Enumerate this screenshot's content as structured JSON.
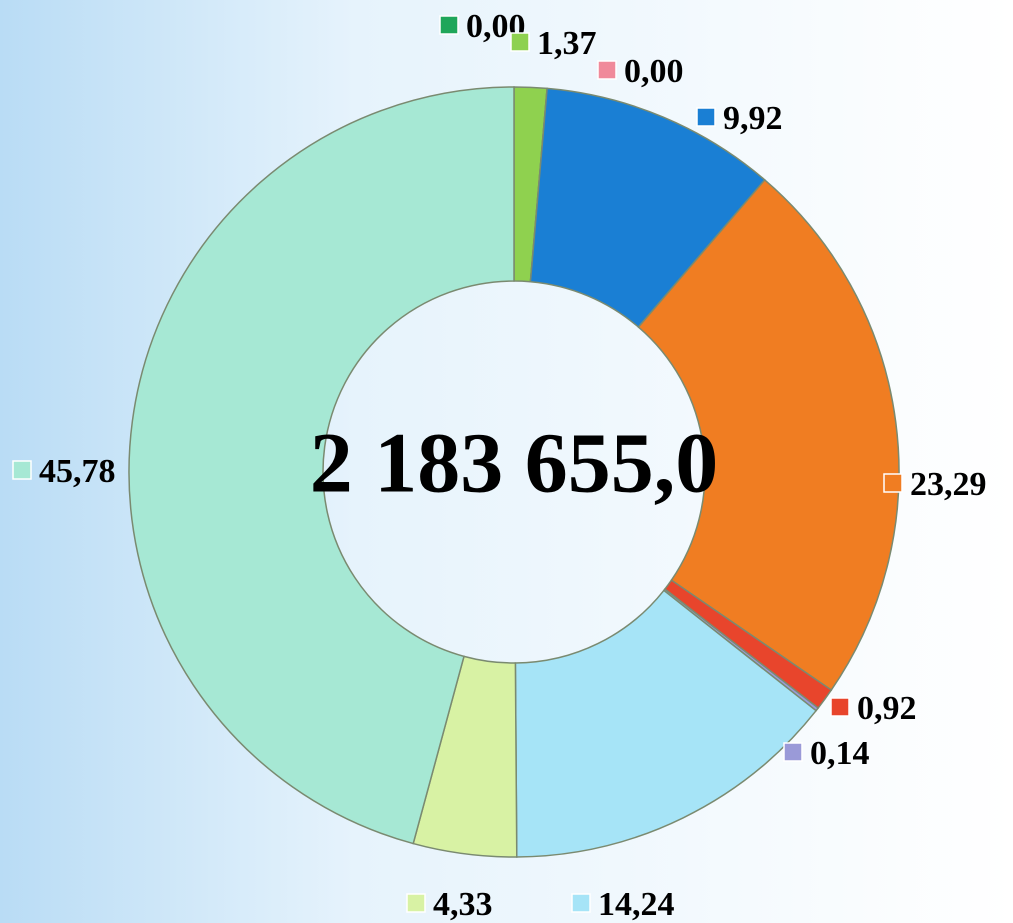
{
  "chart_data": {
    "type": "donut",
    "center_text": "2 183 655,0",
    "values": [
      0,
      1.37,
      0,
      9.92,
      23.29,
      0.92,
      0.14,
      14.24,
      4.33,
      45.78
    ],
    "value_labels": [
      "0,00",
      "1,37",
      "0,00",
      "9,92",
      "23,29",
      "0,92",
      "0,14",
      "14,24",
      "4,33",
      "45,78"
    ],
    "colors": [
      "#1fa65a",
      "#8fd14f",
      "#f08a9a",
      "#1a7fd4",
      "#f07d22",
      "#e8452c",
      "#9a9ad8",
      "#a6e4f7",
      "#d8f2a4",
      "#a6e8d4"
    ]
  }
}
